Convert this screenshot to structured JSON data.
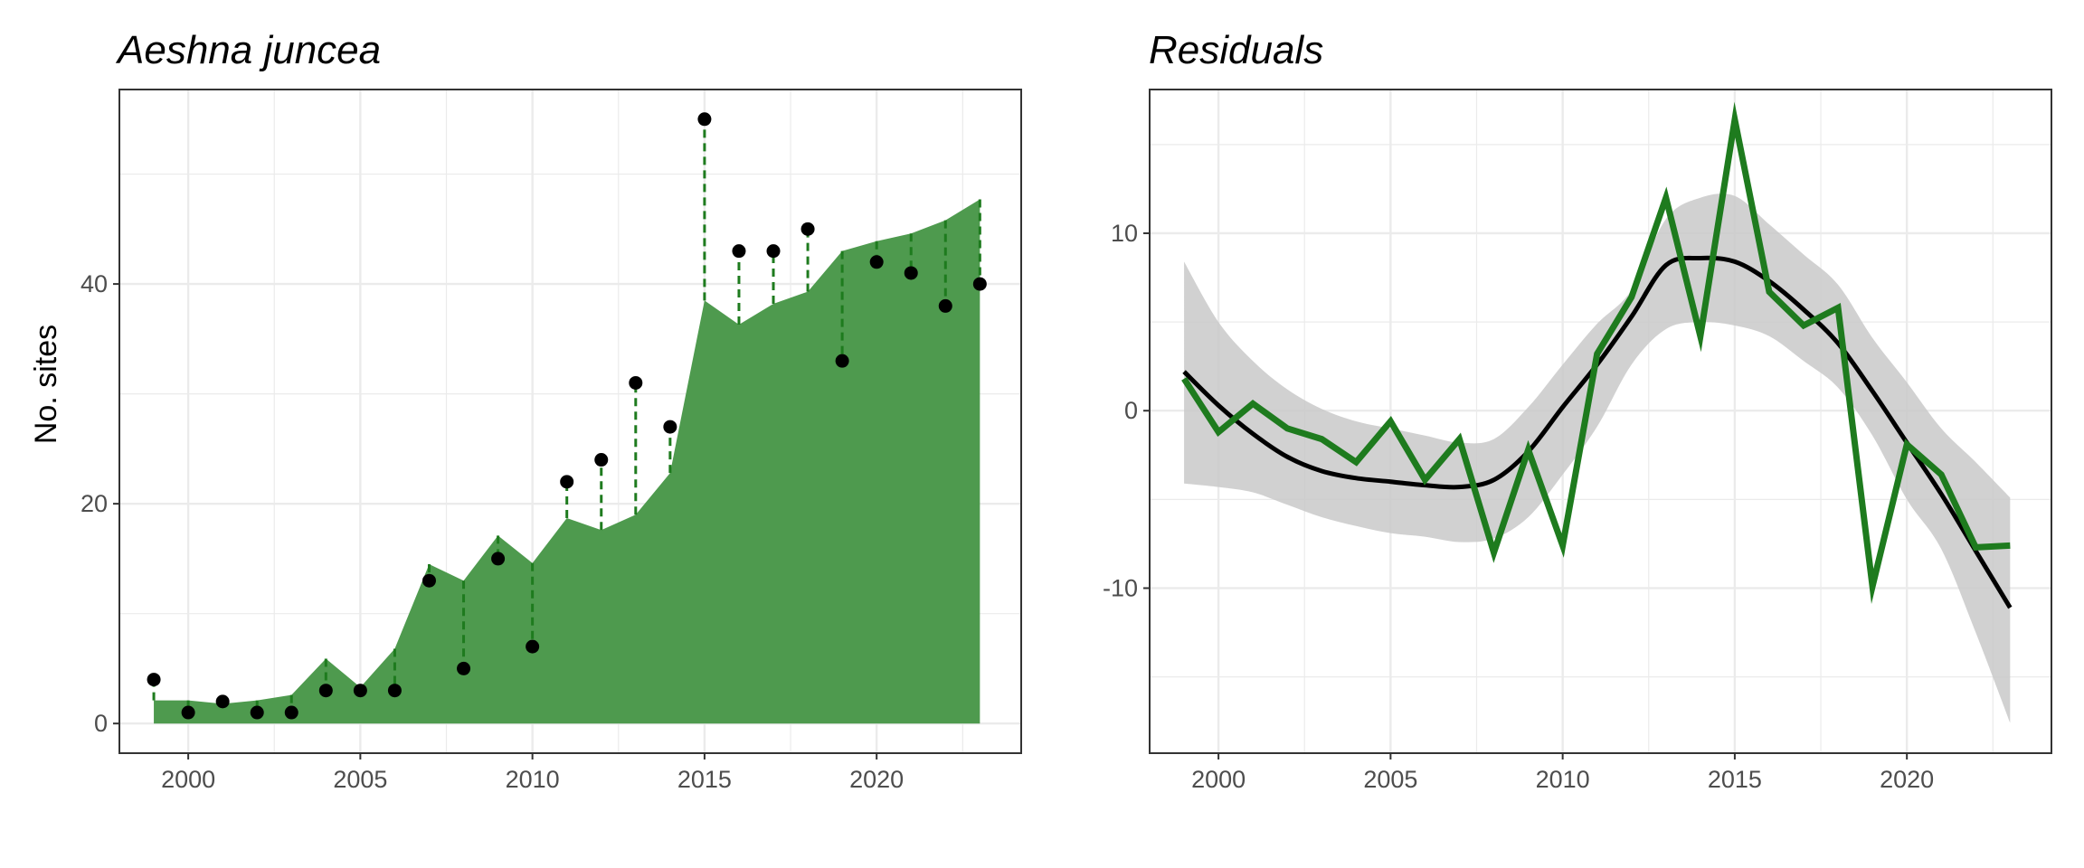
{
  "colors": {
    "fitted_area": "#4e9a4e",
    "dashed_link": "#1e7b1e",
    "observed_point": "#000000",
    "residual_line": "#1e7b1e",
    "smooth_line": "#000000",
    "ribbon": "#c9c9c9",
    "grid": "#ebebeb",
    "panel_border": "#333333"
  },
  "chart_data": [
    {
      "type": "area",
      "title": "Aeshna juncea",
      "ylabel": "No. sites",
      "xlabel": "",
      "x_ticks": [
        2000,
        2005,
        2010,
        2015,
        2020
      ],
      "y_ticks": [
        0,
        20,
        40
      ],
      "xlim": [
        1998,
        2024.2
      ],
      "ylim": [
        -2.7,
        57.7
      ],
      "grid": true,
      "legend": "none",
      "x": [
        1999,
        2000,
        2001,
        2002,
        2003,
        2004,
        2005,
        2006,
        2007,
        2008,
        2009,
        2010,
        2011,
        2012,
        2013,
        2014,
        2015,
        2016,
        2017,
        2018,
        2019,
        2020,
        2021,
        2022,
        2023
      ],
      "series": [
        {
          "values": [
            2.1,
            2.1,
            1.8,
            2.1,
            2.6,
            5.9,
            3.3,
            6.8,
            14.5,
            13.0,
            17.1,
            14.6,
            18.7,
            17.6,
            19.0,
            22.8,
            38.5,
            36.3,
            38.2,
            39.3,
            43.0,
            43.9,
            44.6,
            45.8,
            47.7
          ]
        },
        {
          "values": [
            4,
            1,
            2,
            1,
            1,
            3,
            3,
            3,
            13,
            5,
            15,
            7,
            22,
            24,
            31,
            27,
            55,
            43,
            43,
            45,
            33,
            42,
            41,
            38,
            40
          ]
        }
      ]
    },
    {
      "type": "line",
      "title": "Residuals",
      "ylabel": "",
      "xlabel": "",
      "x_ticks": [
        2000,
        2005,
        2010,
        2015,
        2020
      ],
      "y_ticks": [
        -10,
        0,
        10
      ],
      "xlim": [
        1998,
        2024.2
      ],
      "ylim": [
        -19.3,
        18.1
      ],
      "grid": true,
      "legend": "none",
      "x": [
        1999,
        2000,
        2001,
        2002,
        2003,
        2004,
        2005,
        2006,
        2007,
        2008,
        2009,
        2010,
        2011,
        2012,
        2013,
        2014,
        2015,
        2016,
        2017,
        2018,
        2019,
        2020,
        2021,
        2022,
        2023
      ],
      "series": [
        {
          "values": [
            1.8,
            -1.2,
            0.4,
            -1.0,
            -1.6,
            -2.9,
            -0.6,
            -3.9,
            -1.6,
            -8.0,
            -2.2,
            -7.6,
            3.2,
            6.4,
            12.0,
            4.2,
            16.4,
            6.7,
            4.8,
            5.8,
            -9.9,
            -1.9,
            -3.6,
            -7.7,
            -7.6
          ]
        },
        {
          "values": [
            2.2,
            0.3,
            -1.3,
            -2.6,
            -3.4,
            -3.8,
            -4.0,
            -4.2,
            -4.3,
            -3.9,
            -2.3,
            0.2,
            2.6,
            5.3,
            8.2,
            8.6,
            8.4,
            7.3,
            5.7,
            3.8,
            1.1,
            -1.8,
            -4.7,
            -7.9,
            -11.1
          ]
        }
      ],
      "ribbon_upper": [
        8.4,
        5.0,
        2.8,
        1.2,
        0.1,
        -0.6,
        -1.0,
        -1.4,
        -1.8,
        -1.6,
        0.2,
        2.6,
        4.9,
        6.8,
        10.8,
        12.0,
        12.1,
        10.5,
        8.8,
        7.1,
        4.1,
        1.6,
        -1.0,
        -2.9,
        -4.9
      ],
      "ribbon_lower": [
        -4.1,
        -4.3,
        -4.6,
        -5.3,
        -6.0,
        -6.5,
        -6.9,
        -7.1,
        -7.4,
        -7.2,
        -6.0,
        -3.6,
        -0.9,
        2.6,
        4.6,
        5.0,
        4.8,
        4.2,
        2.8,
        1.3,
        -1.4,
        -5.0,
        -7.8,
        -12.5,
        -17.6
      ]
    }
  ]
}
